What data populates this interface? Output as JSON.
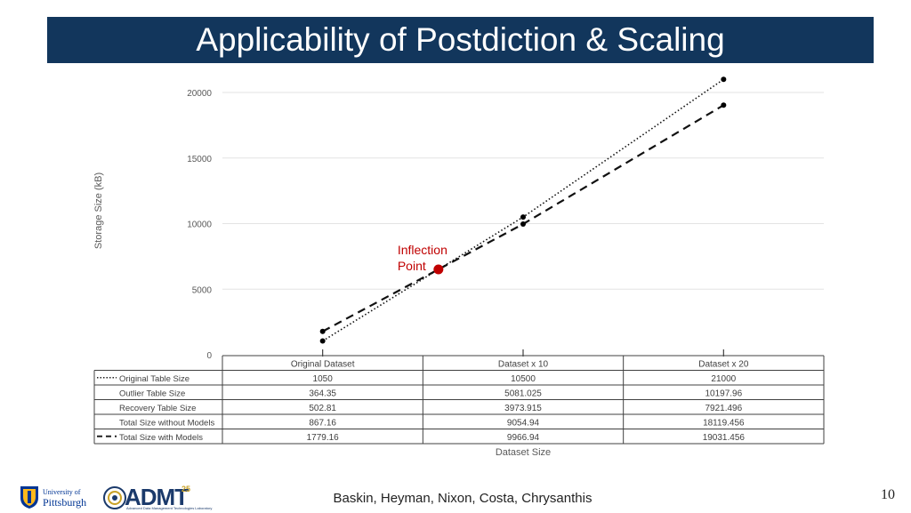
{
  "slide": {
    "title": "Applicability of Postdiction & Scaling",
    "authors": "Baskin, Heyman, Nixon, Costa, Chrysanthis",
    "page_number": "10",
    "logos": {
      "pitt_line1": "University of",
      "pitt_line2": "Pittsburgh",
      "admt": "ADMT",
      "admt_sup": "25",
      "admt_sup2": "YEARS",
      "admt_caption": "Advanced Data Management Technologies Laboratory"
    },
    "annotation": {
      "line1": "Inflection",
      "line2": "Point",
      "color": "#c00000"
    }
  },
  "chart_data": {
    "type": "line",
    "ylabel": "Storage Size (kB)",
    "xlabel": "Dataset Size",
    "ylim": [
      0,
      20000
    ],
    "yticks": [
      0,
      5000,
      10000,
      15000,
      20000
    ],
    "ytick_labels": [
      "0",
      "5000",
      "10000",
      "15000",
      "20000"
    ],
    "grid": true,
    "categories": [
      "Original Dataset",
      "Dataset x 10",
      "Dataset x 20"
    ],
    "series": [
      {
        "name": "Original Table Size",
        "values": [
          1050,
          10500,
          21000
        ],
        "style": "dotted",
        "plotted": true
      },
      {
        "name": "Outlier Table Size",
        "values": [
          364.35,
          5081.025,
          10197.96
        ],
        "plotted": false
      },
      {
        "name": "Recovery Table Size",
        "values": [
          502.81,
          3973.915,
          7921.496
        ],
        "plotted": false
      },
      {
        "name": "Total Size without Models",
        "values": [
          867.16,
          9054.94,
          18119.456
        ],
        "plotted": false
      },
      {
        "name": "Total Size with Models",
        "values": [
          1779.16,
          9966.94,
          19031.456
        ],
        "style": "dashed",
        "plotted": true
      }
    ],
    "table_cells": [
      [
        "1050",
        "10500",
        "21000"
      ],
      [
        "364.35",
        "5081.025",
        "10197.96"
      ],
      [
        "502.81",
        "3973.915",
        "7921.496"
      ],
      [
        "867.16",
        "9054.94",
        "18119.456"
      ],
      [
        "1779.16",
        "9966.94",
        "19031.456"
      ]
    ]
  }
}
